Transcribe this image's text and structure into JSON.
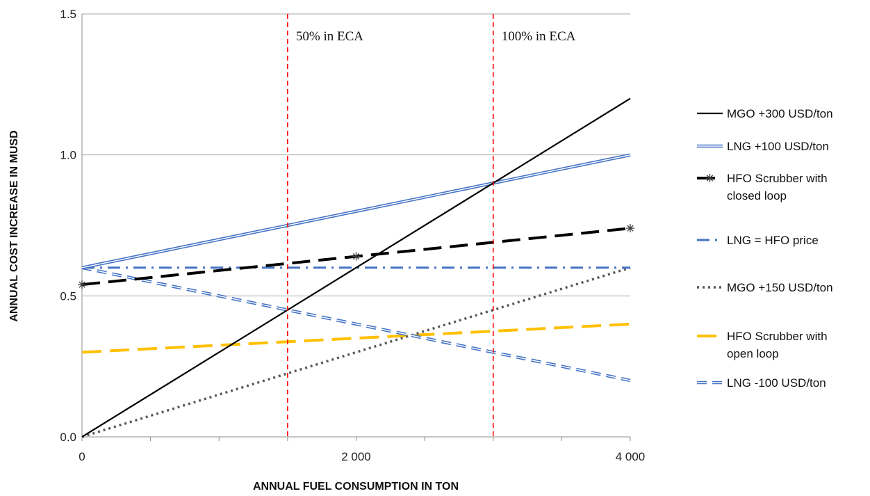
{
  "chart_data": {
    "type": "line",
    "title": "",
    "xlabel": "ANNUAL FUEL CONSUMPTION IN TON",
    "ylabel": "ANNUAL COST INCREASE IN MUSD",
    "xlim": [
      0,
      4000
    ],
    "ylim": [
      0,
      1.5
    ],
    "x_ticks": [
      {
        "value": 0,
        "label": "0"
      },
      {
        "value": 2000,
        "label": "2 000"
      },
      {
        "value": 4000,
        "label": "4 000"
      }
    ],
    "x_minor_ticks": [
      500,
      1000,
      1500,
      2500,
      3000,
      3500
    ],
    "y_ticks": [
      {
        "value": 0,
        "label": "0.0"
      },
      {
        "value": 0.5,
        "label": "0.5"
      },
      {
        "value": 1.0,
        "label": "1.0"
      },
      {
        "value": 1.5,
        "label": "1.5"
      }
    ],
    "grid": "horizontal",
    "legend_position": "right",
    "series": [
      {
        "name": "MGO +300 USD/ton",
        "color": "#000000",
        "style": "solid",
        "x": [
          0,
          4000
        ],
        "y": [
          0,
          1.2
        ]
      },
      {
        "name": "LNG  +100 USD/ton",
        "color": "#4472c4",
        "style": "double",
        "x": [
          0,
          4000
        ],
        "y": [
          0.6,
          1.0
        ]
      },
      {
        "name": "HFO Scrubber with closed loop",
        "color": "#000000",
        "style": "long-dash-star",
        "x": [
          0,
          2000,
          4000
        ],
        "y": [
          0.54,
          0.64,
          0.74
        ]
      },
      {
        "name": "LNG = HFO price",
        "color": "#4472c4",
        "style": "dash-dot",
        "x": [
          0,
          4000
        ],
        "y": [
          0.6,
          0.6
        ]
      },
      {
        "name": "MGO +150 USD/ton",
        "color": "#595959",
        "style": "dotted",
        "x": [
          0,
          4000
        ],
        "y": [
          0,
          0.6
        ]
      },
      {
        "name": "HFO Scrubber with open loop",
        "color": "#ffc000",
        "style": "long-dash",
        "x": [
          0,
          4000
        ],
        "y": [
          0.3,
          0.4
        ]
      },
      {
        "name": "LNG  -100 USD/ton",
        "color": "#4472c4",
        "style": "double-dash",
        "x": [
          0,
          4000
        ],
        "y": [
          0.6,
          0.2
        ]
      }
    ],
    "vertical_lines": [
      {
        "x": 1500,
        "label": "50% in ECA",
        "color": "#ff0000"
      },
      {
        "x": 3000,
        "label": "100% in ECA",
        "color": "#ff0000"
      }
    ]
  },
  "legend": {
    "entries": [
      {
        "lines": [
          "MGO +300 USD/ton"
        ]
      },
      {
        "lines": [
          "LNG  +100 USD/ton"
        ]
      },
      {
        "lines": [
          "HFO Scrubber with",
          "closed loop"
        ]
      },
      {
        "lines": [
          "LNG = HFO price"
        ]
      },
      {
        "lines": [
          "MGO +150 USD/ton"
        ]
      },
      {
        "lines": [
          "HFO Scrubber with",
          "open loop"
        ]
      },
      {
        "lines": [
          "LNG  -100 USD/ton"
        ]
      }
    ]
  }
}
